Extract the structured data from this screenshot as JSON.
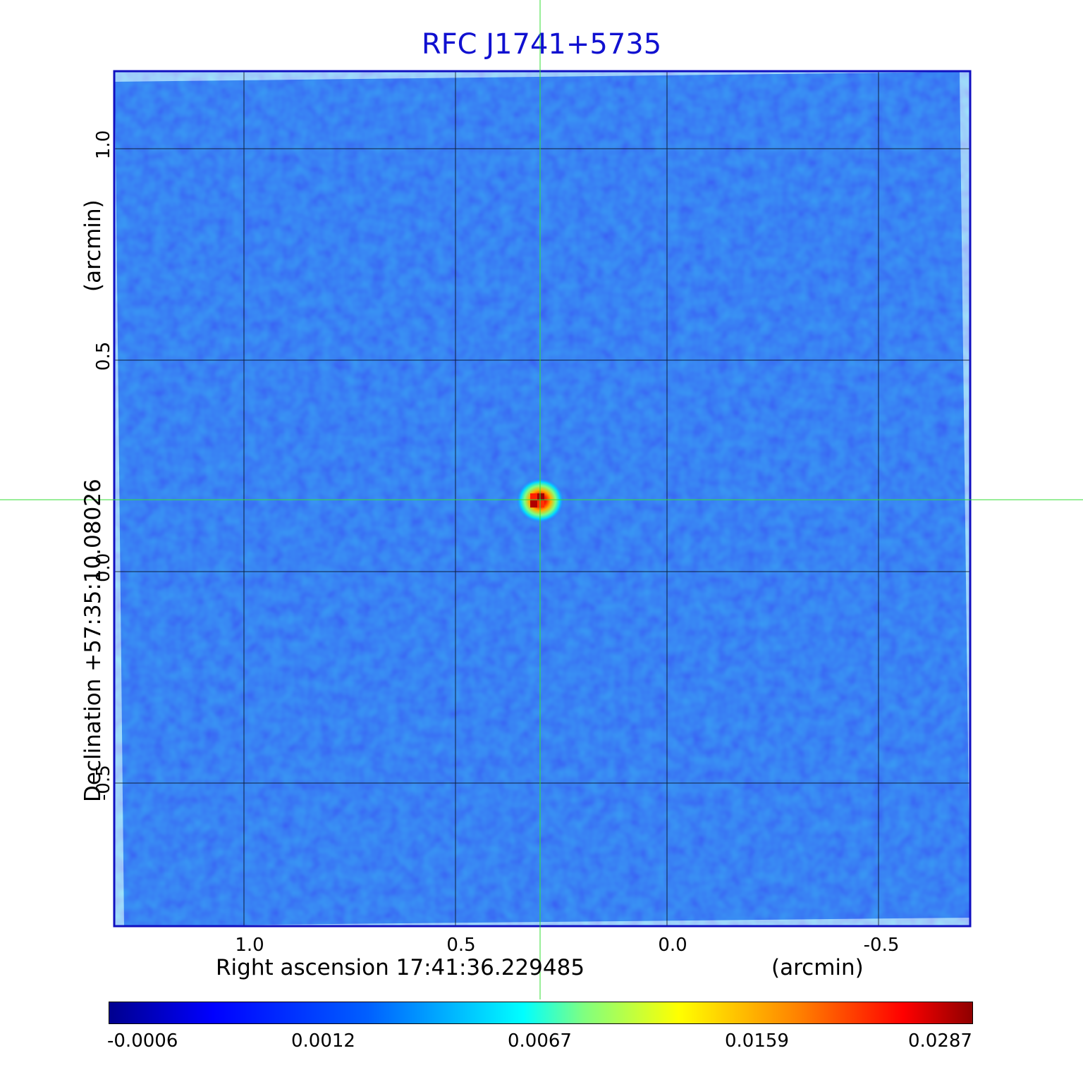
{
  "title": "RFC J1741+5735",
  "axes": {
    "x_label": "Right ascension  17:41:36.229485",
    "x_unit": "(arcmin)",
    "y_label": "Declination  +57:35:10.08026",
    "y_unit": "(arcmin)",
    "x_ticks": [
      "1.0",
      "0.5",
      "0.0",
      "-0.5"
    ],
    "y_ticks": [
      "1.0",
      "0.5",
      "0.0",
      "-0.5"
    ]
  },
  "colorbar": {
    "ticks": [
      "-0.0006",
      "0.0012",
      "0.0067",
      "0.0159",
      "0.0287"
    ]
  },
  "colors": {
    "title": "#1010d0",
    "frame": "#1010c0",
    "background_field": "#1f55f0",
    "crosshair": "#33dd33",
    "grid": "#000000"
  }
}
